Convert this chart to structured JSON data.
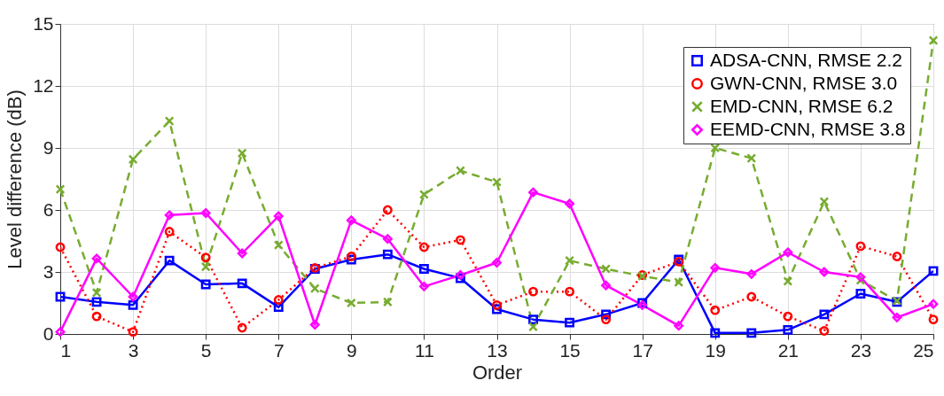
{
  "chart_data": {
    "type": "line",
    "xlabel": "Order",
    "ylabel": "Level difference (dB)",
    "x": [
      1,
      2,
      3,
      4,
      5,
      6,
      7,
      8,
      9,
      10,
      11,
      12,
      13,
      14,
      15,
      16,
      17,
      18,
      19,
      20,
      21,
      22,
      23,
      24,
      25
    ],
    "xlim": [
      1,
      25
    ],
    "xticks": [
      1,
      3,
      5,
      7,
      9,
      11,
      13,
      15,
      17,
      19,
      21,
      23,
      25
    ],
    "ylim": [
      0,
      15
    ],
    "yticks": [
      0,
      3,
      6,
      9,
      12,
      15
    ],
    "grid": true,
    "legend": "top right",
    "series": [
      {
        "name": "ADSA-CNN, RMSE 2.2",
        "color": "#0000ff",
        "marker": "square",
        "line_style": "solid",
        "values": [
          1.8,
          1.55,
          1.4,
          3.55,
          2.4,
          2.45,
          1.3,
          3.15,
          3.6,
          3.85,
          3.15,
          2.7,
          1.2,
          0.7,
          0.55,
          0.95,
          1.5,
          3.6,
          0.05,
          0.05,
          0.2,
          0.95,
          1.95,
          1.55,
          3.05
        ]
      },
      {
        "name": "GWN-CNN, RMSE 3.0",
        "color": "#ff0000",
        "marker": "circle",
        "line_style": "dotted",
        "values": [
          4.2,
          0.85,
          0.1,
          4.95,
          3.7,
          0.3,
          1.65,
          3.2,
          3.75,
          6.0,
          4.2,
          4.55,
          1.4,
          2.05,
          2.05,
          0.7,
          2.85,
          3.5,
          1.15,
          1.8,
          0.85,
          0.15,
          4.25,
          3.75,
          0.7
        ]
      },
      {
        "name": "EMD-CNN, RMSE 6.2",
        "color": "#77ac30",
        "marker": "cross",
        "line_style": "dashed",
        "values": [
          7.0,
          2.0,
          8.45,
          10.3,
          3.25,
          8.75,
          4.3,
          2.2,
          1.5,
          1.55,
          6.75,
          7.9,
          7.35,
          0.35,
          3.55,
          3.15,
          2.8,
          2.5,
          9.0,
          8.5,
          2.55,
          6.4,
          2.6,
          1.6,
          14.2
        ]
      },
      {
        "name": "EEMD-CNN, RMSE 3.8",
        "color": "#ff00ff",
        "marker": "diamond",
        "line_style": "solid",
        "values": [
          0.1,
          3.65,
          1.8,
          5.75,
          5.85,
          3.9,
          5.7,
          0.45,
          5.5,
          4.6,
          2.3,
          2.85,
          3.45,
          6.85,
          6.3,
          2.35,
          1.4,
          0.4,
          3.2,
          2.9,
          3.95,
          3.0,
          2.75,
          0.8,
          1.45
        ]
      }
    ]
  }
}
